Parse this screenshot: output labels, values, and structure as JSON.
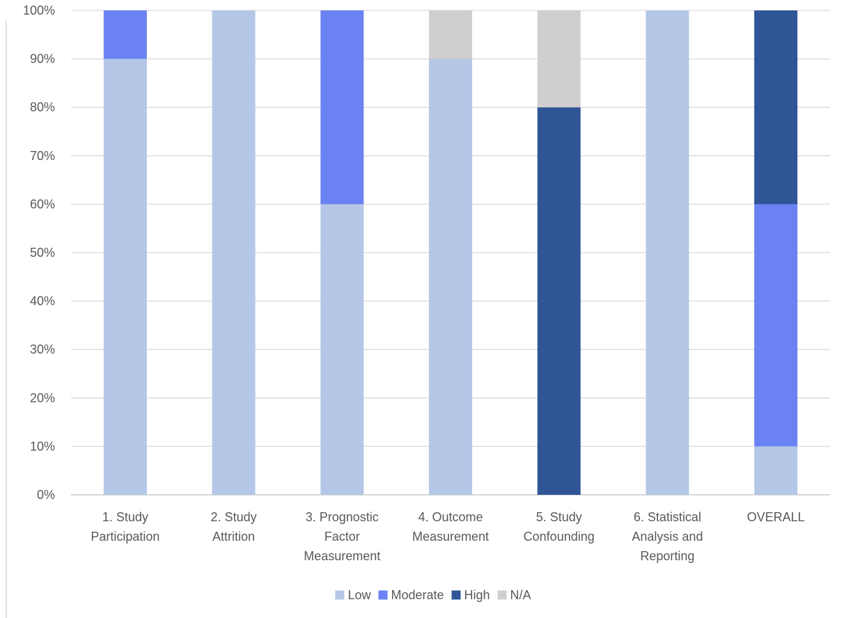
{
  "chart_data": {
    "type": "bar",
    "stacked": true,
    "percent_stacked": true,
    "categories": [
      [
        "1. Study",
        "Participation"
      ],
      [
        "2. Study",
        "Attrition"
      ],
      [
        "3. Prognostic",
        "Factor",
        "Measurement"
      ],
      [
        "4. Outcome",
        "Measurement"
      ],
      [
        "5. Study",
        "Confounding"
      ],
      [
        "6. Statistical",
        "Analysis and",
        "Reporting"
      ],
      [
        "OVERALL"
      ]
    ],
    "series": [
      {
        "name": "Low",
        "color": "#b4c7e7",
        "values": [
          90,
          100,
          60,
          90,
          0,
          100,
          10
        ]
      },
      {
        "name": "Moderate",
        "color": "#6a82f2",
        "values": [
          10,
          0,
          40,
          0,
          0,
          0,
          50
        ]
      },
      {
        "name": "High",
        "color": "#2f5597",
        "values": [
          0,
          0,
          0,
          0,
          80,
          0,
          40
        ]
      },
      {
        "name": "N/A",
        "color": "#d0cece",
        "values": [
          0,
          0,
          0,
          10,
          20,
          0,
          0
        ]
      }
    ],
    "ylim": [
      0,
      100
    ],
    "yticks": [
      "0%",
      "10%",
      "20%",
      "30%",
      "40%",
      "50%",
      "60%",
      "70%",
      "80%",
      "90%",
      "100%"
    ],
    "title": "",
    "xlabel": "",
    "ylabel": "",
    "grid": true,
    "legend_position": "bottom",
    "gridline_color": "#d9d9d9",
    "axis_color": "#bfbfbf",
    "label_color": "#595959"
  }
}
